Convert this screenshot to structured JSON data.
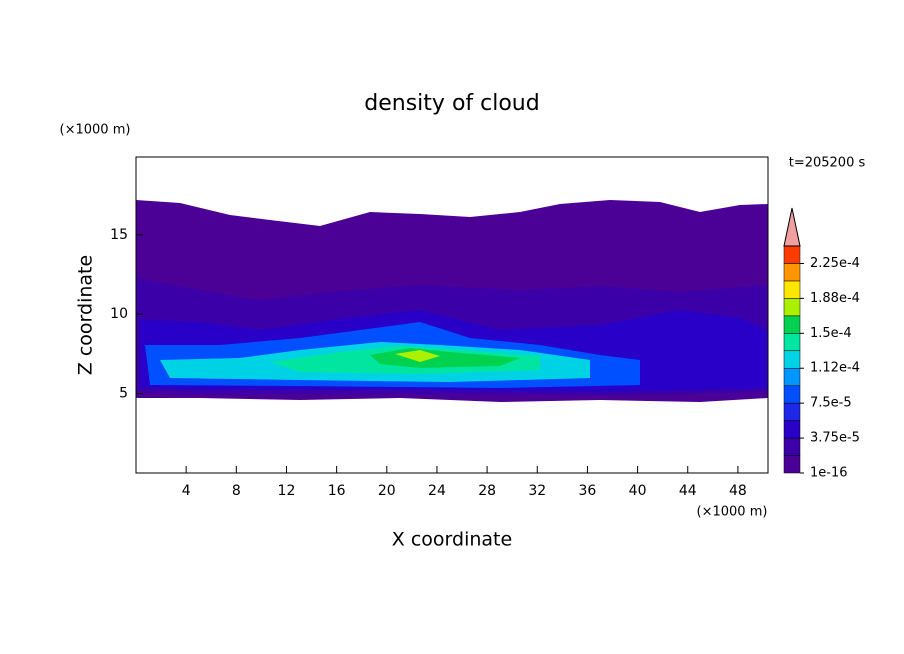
{
  "chart_data": {
    "type": "contour",
    "title": "density of cloud",
    "time_label": "t=205200 s",
    "x_label": "X coordinate",
    "y_label": "Z coordinate",
    "x_unit": "(×1000 m)",
    "y_unit": "(×1000 m)",
    "xlim": [
      0,
      50.4
    ],
    "xticks": [
      4,
      8,
      12,
      16,
      20,
      24,
      28,
      32,
      36,
      40,
      44,
      48
    ],
    "ylim": [
      0,
      19.9
    ],
    "yticks": [
      5,
      10,
      15
    ],
    "colorbar": {
      "clim": [
        0,
        0.00024375
      ],
      "colors": [
        "#4b0096",
        "#3c00a8",
        "#2800c8",
        "#1e28e6",
        "#0050ff",
        "#0096ff",
        "#00d2e6",
        "#00e6a0",
        "#00d250",
        "#aaf000",
        "#ffe600",
        "#ff9600",
        "#ff3c00"
      ],
      "extend_color": "#f0a0a0",
      "ticks": [
        {
          "value": 1e-16,
          "label": "1e-16"
        },
        {
          "value": 3.75e-05,
          "label": "3.75e-5"
        },
        {
          "value": 7.5e-05,
          "label": "7.5e-5"
        },
        {
          "value": 0.0001125,
          "label": "1.12e-4"
        },
        {
          "value": 0.00015,
          "label": "1.5e-4"
        },
        {
          "value": 0.0001875,
          "label": "1.88e-4"
        },
        {
          "value": 0.000225,
          "label": "2.25e-4"
        }
      ]
    }
  }
}
